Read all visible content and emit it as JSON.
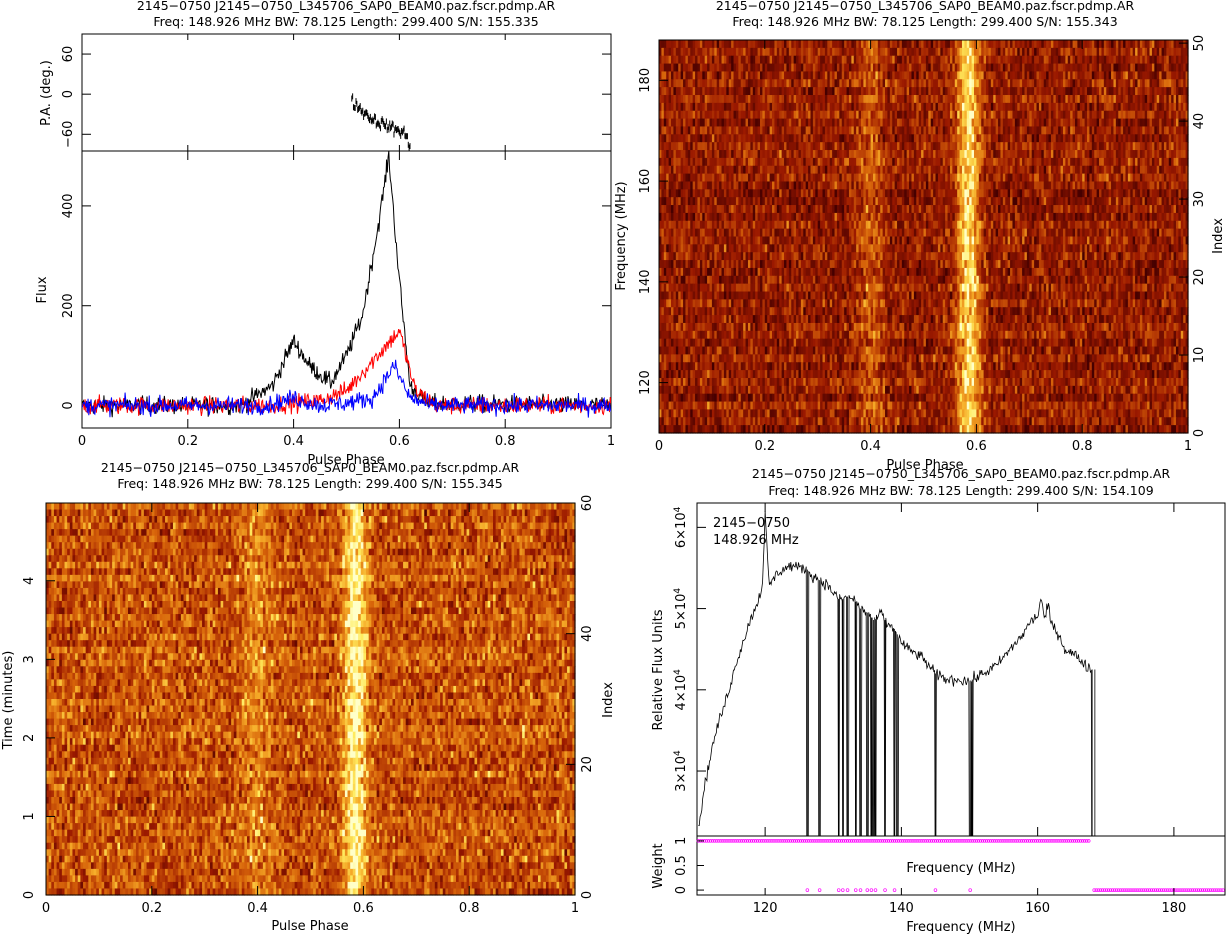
{
  "chart_data": [
    {
      "panel": "profile",
      "type": "line",
      "title_lines": [
        "2145−0750 J2145−0750_L345706_SAP0_BEAM0.paz.fscr.pdmp.AR",
        "Freq: 148.926 MHz BW: 78.125 Length: 299.400 S/N: 155.335"
      ],
      "xlabel": "Pulse Phase",
      "ylabel": "Flux",
      "pa_ylabel": "P.A. (deg.)",
      "xlim": [
        0,
        1
      ],
      "ylim": [
        -45,
        510
      ],
      "pa_ylim": [
        -85,
        90
      ],
      "x_ticks": [
        "0",
        "0.2",
        "0.4",
        "0.6",
        "0.8",
        "1"
      ],
      "x_tick_values": [
        0,
        0.2,
        0.4,
        0.6,
        0.8,
        1
      ],
      "y_ticks": [
        "0",
        "200",
        "400"
      ],
      "y_tick_values": [
        0,
        200,
        400
      ],
      "pa_ticks": [
        "60",
        "0",
        "−60"
      ],
      "pa_tick_values": [
        60,
        0,
        -60
      ],
      "series": [
        {
          "color": "#000000",
          "x": [
            0,
            0.3,
            0.36,
            0.4,
            0.43,
            0.47,
            0.5,
            0.53,
            0.56,
            0.58,
            0.6,
            0.62,
            0.65,
            1
          ],
          "values": [
            0,
            0,
            40,
            130,
            80,
            45,
            100,
            180,
            360,
            500,
            250,
            40,
            5,
            0
          ]
        },
        {
          "color": "#ff0000",
          "x": [
            0,
            0.35,
            0.4,
            0.45,
            0.5,
            0.55,
            0.6,
            0.63,
            0.67,
            1
          ],
          "values": [
            0,
            0,
            5,
            10,
            30,
            90,
            150,
            30,
            0,
            0
          ]
        },
        {
          "color": "#0000ff",
          "x": [
            0,
            0.35,
            0.4,
            0.45,
            0.5,
            0.55,
            0.59,
            0.62,
            0.66,
            1
          ],
          "values": [
            0,
            0,
            15,
            0,
            5,
            15,
            80,
            15,
            0,
            0
          ]
        }
      ],
      "pa_points": {
        "x": [
          0.51,
          0.53,
          0.55,
          0.57,
          0.59,
          0.61,
          0.62
        ],
        "values": [
          -10,
          -25,
          -38,
          -45,
          -52,
          -58,
          -80
        ]
      }
    },
    {
      "panel": "frequency-phase",
      "type": "heatmap",
      "title_lines": [
        "2145−0750 J2145−0750_L345706_SAP0_BEAM0.paz.fscr.pdmp.AR",
        "Freq: 148.926 MHz BW: 78.125 Length: 299.400 S/N: 155.343"
      ],
      "xlabel": "Pulse Phase",
      "ylabel": "Frequency (MHz)",
      "y2label": "Index",
      "xlim": [
        0,
        1
      ],
      "ylim": [
        110,
        188
      ],
      "x_ticks": [
        "0",
        "0.2",
        "0.4",
        "0.6",
        "0.8",
        "1"
      ],
      "x_tick_values": [
        0,
        0.2,
        0.4,
        0.6,
        0.8,
        1
      ],
      "y_ticks": [
        "120",
        "140",
        "160",
        "180"
      ],
      "y_tick_values": [
        120,
        140,
        160,
        180
      ],
      "y2_ticks": [
        "0",
        "10",
        "20",
        "30",
        "40",
        "50"
      ],
      "y2_tick_values": [
        0,
        10,
        20,
        30,
        40,
        50
      ],
      "y2_lim": [
        0,
        50.4
      ],
      "pulse_center": 0.585
    },
    {
      "panel": "time-phase",
      "type": "heatmap",
      "title_lines": [
        "2145−0750 J2145−0750_L345706_SAP0_BEAM0.paz.fscr.pdmp.AR",
        "Freq: 148.926 MHz BW: 78.125 Length: 299.400 S/N: 155.345"
      ],
      "xlabel": "Pulse Phase",
      "ylabel": "Time (minutes)",
      "y2label": "Index",
      "xlim": [
        0,
        1
      ],
      "ylim": [
        0,
        4.99
      ],
      "x_ticks": [
        "0",
        "0.2",
        "0.4",
        "0.6",
        "0.8",
        "1"
      ],
      "x_tick_values": [
        0,
        0.2,
        0.4,
        0.6,
        0.8,
        1
      ],
      "y_ticks": [
        "0",
        "1",
        "2",
        "3",
        "4"
      ],
      "y_tick_values": [
        0,
        1,
        2,
        3,
        4
      ],
      "y2_ticks": [
        "0",
        "20",
        "40",
        "60"
      ],
      "y2_tick_values": [
        0,
        20,
        40,
        60
      ],
      "y2_lim": [
        0,
        60
      ],
      "pulse_center": 0.585
    },
    {
      "panel": "bandpass",
      "type": "line",
      "title_lines": [
        "2145−0750 J2145−0750_L345706_SAP0_BEAM0.paz.fscr.pdmp.AR",
        "Freq: 148.926 MHz BW: 78.125 Length: 299.400 S/N: 154.109"
      ],
      "annotation_lines": [
        "2145−0750",
        "148.926 MHz"
      ],
      "xlabel": "Frequency (MHz)",
      "ylabel": "Relative Flux Units",
      "weight_ylabel": "Weight",
      "weight_xlabel": "Frequency (MHz)",
      "xlim": [
        110,
        187.5
      ],
      "ylim": [
        22000,
        63000
      ],
      "x_ticks": [
        "120",
        "140",
        "160",
        "180"
      ],
      "x_tick_values": [
        120,
        140,
        160,
        180
      ],
      "y_ticks": [
        "3×10",
        "4×10",
        "5×10",
        "6×10"
      ],
      "y_tick_exp": "4",
      "y_tick_values": [
        30000,
        40000,
        50000,
        60000
      ],
      "weight_ticks": [
        "1",
        "0.5",
        "0"
      ],
      "weight_tick_values": [
        1,
        0.5,
        0
      ],
      "weight_ylim": [
        -0.1,
        1.1
      ],
      "spectrum": {
        "x": [
          110.2,
          111,
          112,
          113,
          114,
          115,
          116,
          117,
          118,
          119,
          119.6,
          120,
          120.6,
          121,
          122,
          123,
          124,
          125,
          126,
          127,
          128,
          129,
          130,
          131,
          132,
          133,
          134,
          135,
          136,
          137,
          138,
          139,
          140,
          141,
          142,
          143,
          144,
          145,
          146,
          147,
          148,
          149,
          150,
          151,
          152,
          153,
          154,
          155,
          156,
          157,
          158,
          159,
          160,
          160.5,
          161,
          161.6,
          162,
          163,
          164,
          165,
          166,
          167,
          168
        ],
        "values": [
          23000,
          27500,
          32000,
          35500,
          38000,
          41000,
          44000,
          46500,
          49000,
          51000,
          53000,
          61500,
          52500,
          53500,
          54500,
          55000,
          55300,
          55000,
          55000,
          54000,
          53500,
          53000,
          52000,
          51000,
          51500,
          51200,
          50000,
          49500,
          48500,
          49500,
          48000,
          47500,
          45800,
          45000,
          44500,
          44000,
          43000,
          42000,
          41500,
          41200,
          41300,
          41200,
          41100,
          41500,
          42000,
          42500,
          43000,
          44000,
          45000,
          46000,
          47000,
          48500,
          49000,
          51500,
          48500,
          50500,
          48000,
          47000,
          45000,
          44500,
          44000,
          43000,
          42500
        ]
      },
      "zapped_channels": [
        126.2,
        128,
        130.8,
        131.4,
        132.1,
        133.3,
        134,
        135,
        135.6,
        135.9,
        136.2,
        137.6,
        139,
        139.4,
        145,
        150.1,
        150.4,
        168,
        168.4
      ],
      "weights": {
        "ones_range": [
          110.2,
          167.8
        ],
        "zero_range": [
          168.3,
          187.5
        ],
        "zero_points_in_band": [
          126.2,
          128,
          130.8,
          131.4,
          132.1,
          133.3,
          134,
          135,
          135.6,
          136.2,
          137.6,
          139,
          145,
          150.1
        ]
      }
    }
  ]
}
